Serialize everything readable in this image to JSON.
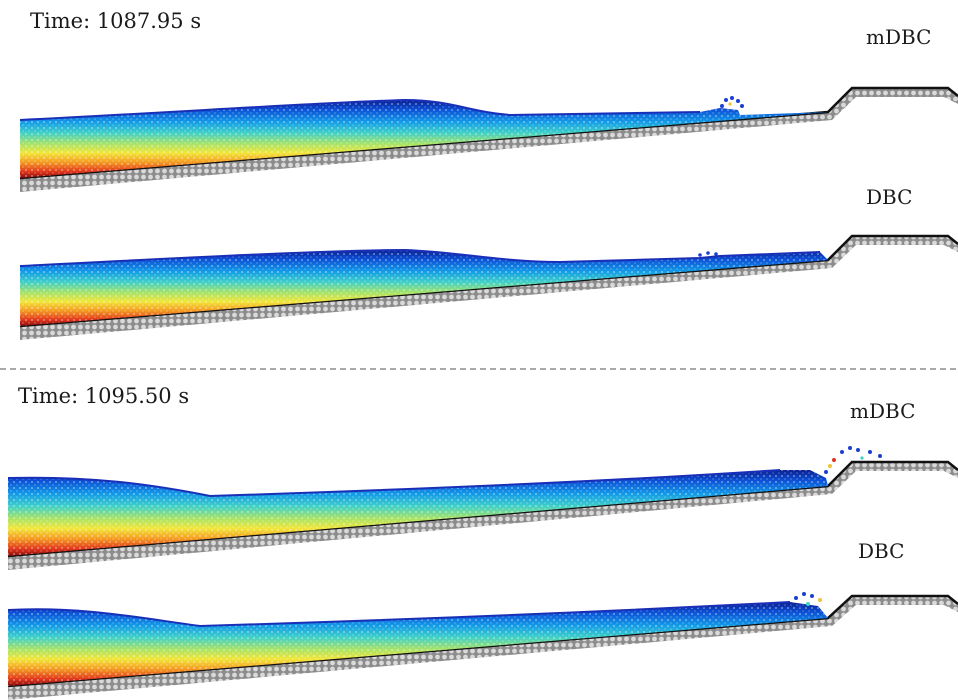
{
  "snapshots": [
    {
      "time_label": "Time: 1087.95 s",
      "runs": [
        {
          "method": "mDBC"
        },
        {
          "method": "DBC"
        }
      ]
    },
    {
      "time_label": "Time: 1095.50 s",
      "runs": [
        {
          "method": "mDBC"
        },
        {
          "method": "DBC"
        }
      ]
    }
  ],
  "colors": {
    "background": "#ffffff",
    "boundary_line": "#111111",
    "boundary_particles": "#9a9a9a",
    "free_surface": "#1a2fb8",
    "divider": "#555555",
    "colormap": [
      "#0a1f8f",
      "#0b4fd6",
      "#139be8",
      "#3fd0c8",
      "#a6e36a",
      "#f2e63a",
      "#f59a22",
      "#e0341c",
      "#8a0d0d"
    ]
  },
  "icons": {
    "panel": "sph-particle-field"
  }
}
